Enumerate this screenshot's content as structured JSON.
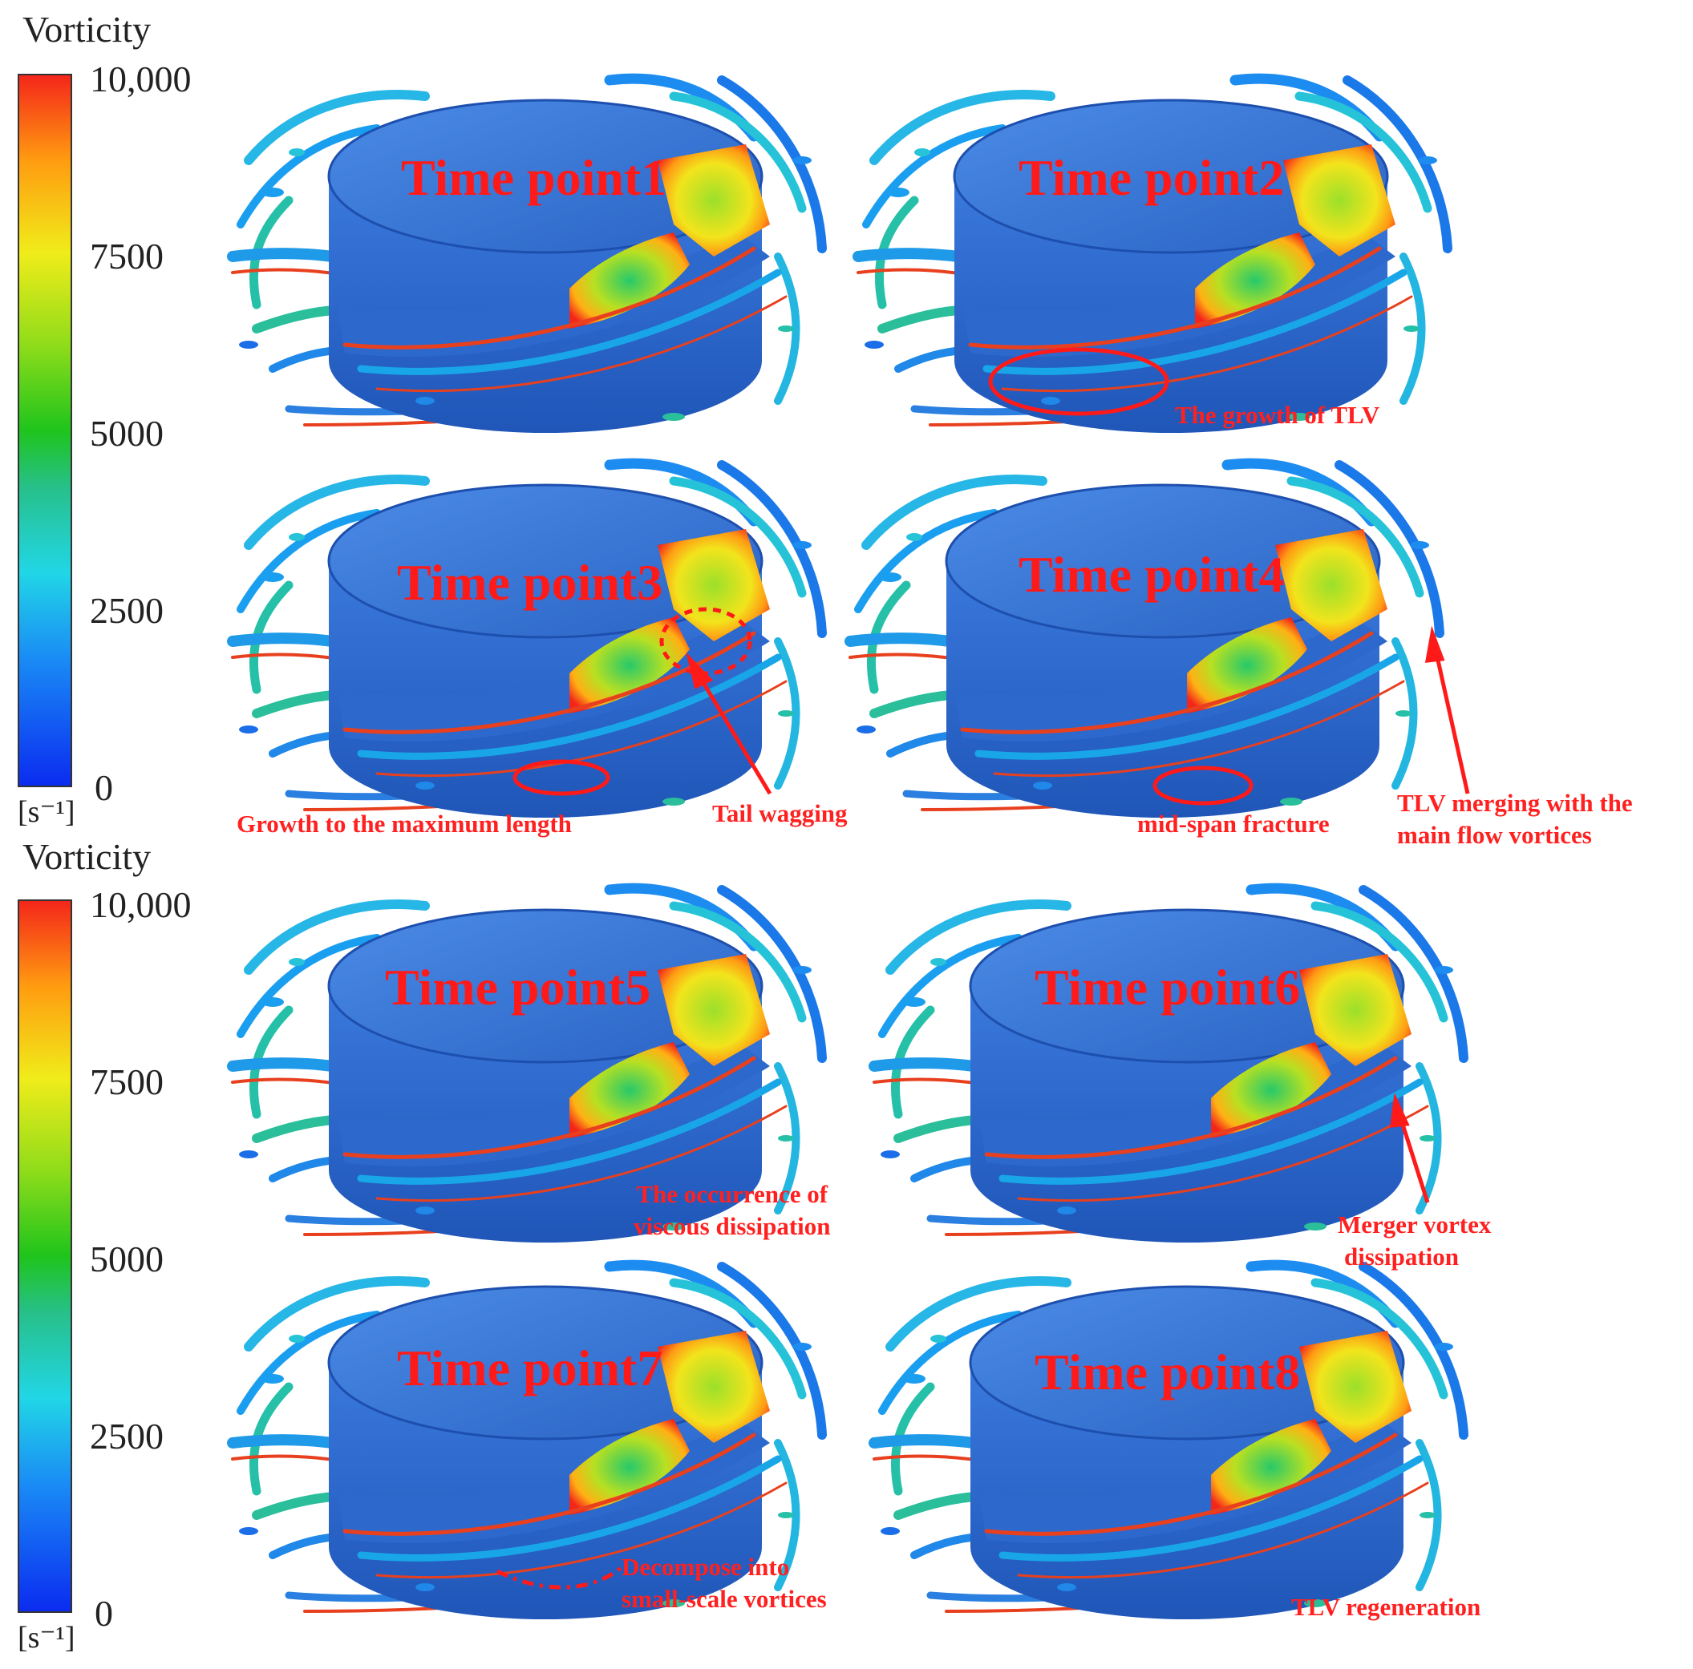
{
  "colorbars": [
    {
      "title": "Vorticity",
      "ticks": [
        "10,000",
        "7500",
        "5000",
        "2500",
        "0"
      ],
      "unit": "[s⁻¹]"
    },
    {
      "title": "Vorticity",
      "ticks": [
        "10,000",
        "7500",
        "5000",
        "2500",
        "0"
      ],
      "unit": "[s⁻¹]"
    }
  ],
  "panels": [
    {
      "label": "Time point1"
    },
    {
      "label": "Time point2"
    },
    {
      "label": "Time point3"
    },
    {
      "label": "Time point4"
    },
    {
      "label": "Time point5"
    },
    {
      "label": "Time point6"
    },
    {
      "label": "Time point7"
    },
    {
      "label": "Time point8"
    }
  ],
  "annotations": {
    "growth_tlv": "The growth of TLV",
    "growth_max": "Growth to the maximum length",
    "tail_wagging": "Tail wagging",
    "mid_span": "mid-span fracture",
    "tlv_merging_1": "TLV merging with the",
    "tlv_merging_2": "main flow vortices",
    "viscous_1": "The occurrence of",
    "viscous_2": "viscous dissipation",
    "merger_1": "Merger vortex",
    "merger_2": "dissipation",
    "decompose_1": "Decompose into",
    "decompose_2": "small-scale vortices",
    "regeneration": "TLV regeneration"
  },
  "colors": {
    "annotation": "#ff2020",
    "blade": "#2f6fd6",
    "vortex_high": "#f4261a",
    "vortex_low": "#0b2cf0"
  }
}
